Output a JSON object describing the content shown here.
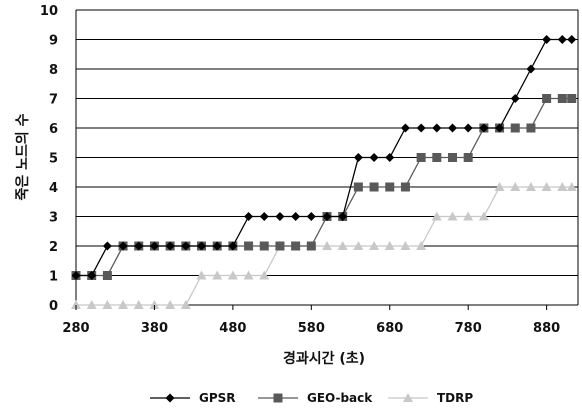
{
  "chart_data": {
    "type": "line",
    "title": "",
    "xlabel": "경과시간 (초)",
    "ylabel": "죽은 노드의 수",
    "xlim": [
      280,
      920
    ],
    "ylim": [
      0,
      10
    ],
    "x_ticks": [
      280,
      380,
      480,
      580,
      680,
      780,
      880
    ],
    "y_ticks": [
      0,
      1,
      2,
      3,
      4,
      5,
      6,
      7,
      8,
      9,
      10
    ],
    "grid": "horizontal",
    "legend_position": "bottom",
    "series": [
      {
        "name": "GPSR",
        "color": "#000000",
        "marker": "diamond",
        "x": [
          280,
          300,
          320,
          340,
          360,
          380,
          400,
          420,
          440,
          460,
          480,
          500,
          520,
          540,
          560,
          580,
          600,
          620,
          640,
          660,
          680,
          700,
          720,
          740,
          760,
          780,
          800,
          820,
          840,
          860,
          880,
          900,
          912
        ],
        "y": [
          1,
          1,
          2,
          2,
          2,
          2,
          2,
          2,
          2,
          2,
          2,
          3,
          3,
          3,
          3,
          3,
          3,
          3,
          5,
          5,
          5,
          6,
          6,
          6,
          6,
          6,
          6,
          6,
          7,
          8,
          9,
          9,
          9
        ]
      },
      {
        "name": "GEO-back",
        "color": "#595959",
        "marker": "square",
        "x": [
          280,
          300,
          320,
          340,
          360,
          380,
          400,
          420,
          440,
          460,
          480,
          500,
          520,
          540,
          560,
          580,
          600,
          620,
          640,
          660,
          680,
          700,
          720,
          740,
          760,
          780,
          800,
          820,
          840,
          860,
          880,
          900,
          912
        ],
        "y": [
          1,
          1,
          1,
          2,
          2,
          2,
          2,
          2,
          2,
          2,
          2,
          2,
          2,
          2,
          2,
          2,
          3,
          3,
          4,
          4,
          4,
          4,
          5,
          5,
          5,
          5,
          6,
          6,
          6,
          6,
          7,
          7,
          7
        ]
      },
      {
        "name": "TDRP",
        "color": "#c8c8c8",
        "marker": "triangle",
        "x": [
          280,
          300,
          320,
          340,
          360,
          380,
          400,
          420,
          440,
          460,
          480,
          500,
          520,
          540,
          560,
          580,
          600,
          620,
          640,
          660,
          680,
          700,
          720,
          740,
          760,
          780,
          800,
          820,
          840,
          860,
          880,
          900,
          912
        ],
        "y": [
          0,
          0,
          0,
          0,
          0,
          0,
          0,
          0,
          1,
          1,
          1,
          1,
          1,
          2,
          2,
          2,
          2,
          2,
          2,
          2,
          2,
          2,
          2,
          3,
          3,
          3,
          3,
          4,
          4,
          4,
          4,
          4,
          4
        ]
      }
    ]
  }
}
